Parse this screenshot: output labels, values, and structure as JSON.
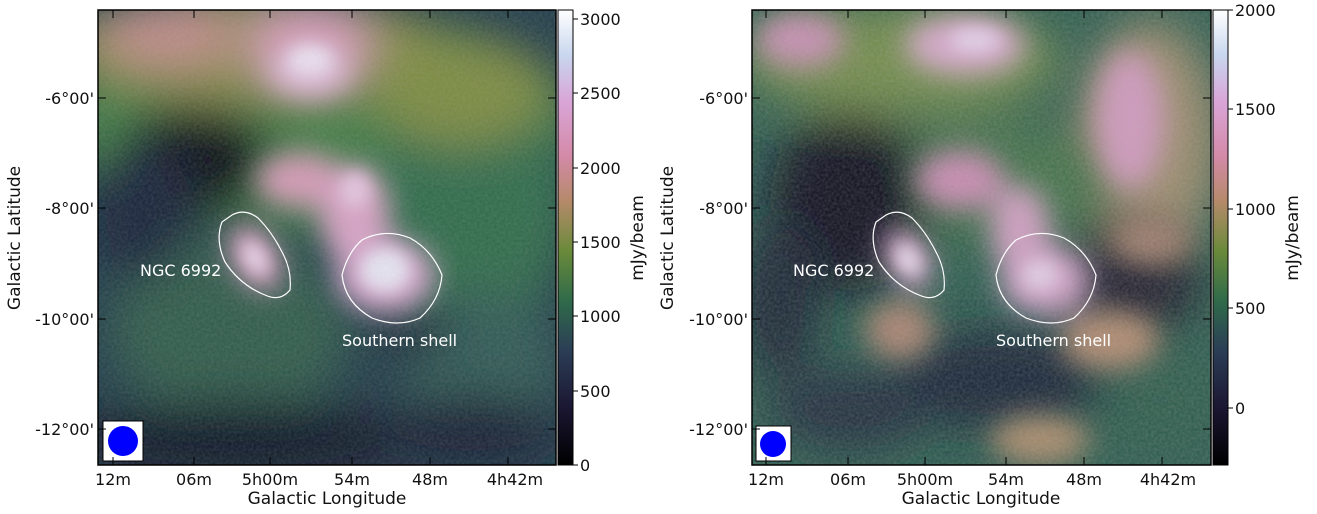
{
  "panels": [
    {
      "id": "left",
      "xlabel": "Galactic Longitude",
      "ylabel": "Galactic Latitude",
      "x_ticks": [
        "12m",
        "06m",
        "5h00m",
        "54m",
        "48m",
        "4h42m"
      ],
      "y_ticks": [
        "-6°00'",
        "-8°00'",
        "-10°00'",
        "-12°00'"
      ],
      "colorbar": {
        "label": "mJy/beam",
        "ticks": [
          "0",
          "500",
          "1000",
          "1500",
          "2000",
          "2500",
          "3000"
        ],
        "range": [
          0,
          3050
        ]
      },
      "annotations": {
        "source": "NGC 6992",
        "shell": "Southern shell"
      },
      "beam_color": "#0000ff"
    },
    {
      "id": "right",
      "xlabel": "Galactic Longitude",
      "ylabel": "Galactic Latitude",
      "x_ticks": [
        "12m",
        "06m",
        "5h00m",
        "54m",
        "48m",
        "4h42m"
      ],
      "y_ticks": [
        "-6°00'",
        "-8°00'",
        "-10°00'",
        "-12°00'"
      ],
      "colorbar": {
        "label": "mJy/beam",
        "ticks": [
          "0",
          "500",
          "1000",
          "1500",
          "2000"
        ],
        "range": [
          -300,
          2000
        ]
      },
      "annotations": {
        "source": "NGC 6992",
        "shell": "Southern shell"
      },
      "beam_color": "#0000ff"
    }
  ],
  "colormap": [
    "#000000",
    "#1a1530",
    "#2b3d55",
    "#2f6a4a",
    "#6a8a3a",
    "#b58a6a",
    "#d48aa8",
    "#d9a6d8",
    "#c8d6ee",
    "#ffffff"
  ]
}
